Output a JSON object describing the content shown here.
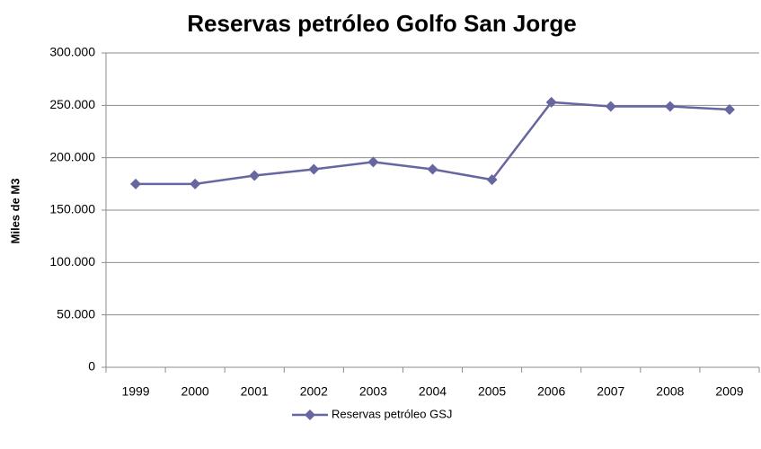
{
  "chart_data": {
    "type": "line",
    "title": "Reservas petróleo Golfo San Jorge",
    "y_label": "Miles de M3",
    "categories": [
      "1999",
      "2000",
      "2001",
      "2002",
      "2003",
      "2004",
      "2005",
      "2006",
      "2007",
      "2008",
      "2009"
    ],
    "series": [
      {
        "name": "Reservas petróleo GSJ",
        "color": "#6666a0",
        "values": [
          175000,
          175000,
          183000,
          189000,
          196000,
          189000,
          179000,
          253000,
          249000,
          249000,
          246000
        ]
      }
    ],
    "ylim": [
      0,
      300000
    ],
    "yticks": [
      0,
      {
        "value": 50000,
        "label": "50.000"
      },
      {
        "value": 100000,
        "label": "100.000"
      },
      {
        "value": 150000,
        "label": "150.000"
      },
      {
        "value": 200000,
        "label": "200.000"
      },
      {
        "value": 250000,
        "label": "250.000"
      },
      {
        "value": 300000,
        "label": "300.000"
      }
    ],
    "grid": true,
    "legend": "bottom"
  }
}
